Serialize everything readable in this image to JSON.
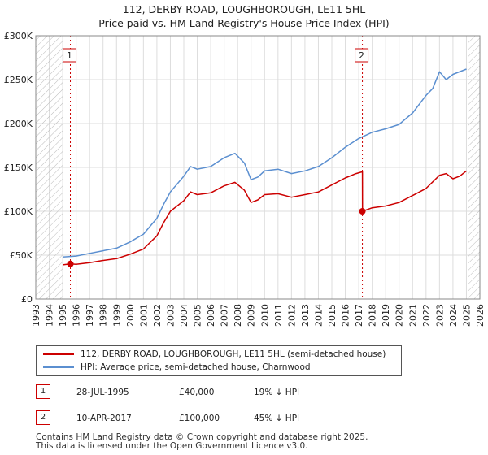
{
  "header": {
    "title": "112, DERBY ROAD, LOUGHBOROUGH, LE11 5HL",
    "subtitle": "Price paid vs. HM Land Registry's House Price Index (HPI)"
  },
  "chart_data": {
    "type": "line",
    "title": "112, DERBY ROAD, LOUGHBOROUGH, LE11 5HL",
    "subtitle": "Price paid vs. HM Land Registry's House Price Index (HPI)",
    "xlabel": "",
    "ylabel": "",
    "xlim": [
      1993,
      2026
    ],
    "ylim": [
      0,
      300000
    ],
    "x_ticks": [
      "1993",
      "1994",
      "1995",
      "1996",
      "1997",
      "1998",
      "1999",
      "2000",
      "2001",
      "2002",
      "2003",
      "2004",
      "2005",
      "2006",
      "2007",
      "2008",
      "2009",
      "2010",
      "2011",
      "2012",
      "2013",
      "2014",
      "2015",
      "2016",
      "2017",
      "2018",
      "2019",
      "2020",
      "2021",
      "2022",
      "2023",
      "2024",
      "2025",
      "2026"
    ],
    "y_ticks": [
      {
        "value": 0,
        "label": "£0"
      },
      {
        "value": 50000,
        "label": "£50K"
      },
      {
        "value": 100000,
        "label": "£100K"
      },
      {
        "value": 150000,
        "label": "£150K"
      },
      {
        "value": 200000,
        "label": "£200K"
      },
      {
        "value": 250000,
        "label": "£250K"
      },
      {
        "value": 300000,
        "label": "£300K"
      }
    ],
    "grid": true,
    "hatched_ranges": [
      [
        1993,
        1995.0
      ],
      [
        2025.1,
        2026
      ]
    ],
    "series": [
      {
        "name": "112, DERBY ROAD, LOUGHBOROUGH, LE11 5HL (semi-detached house)",
        "color": "#cc0000",
        "x": [
          1995.0,
          1995.57,
          1996,
          1997,
          1998,
          1999,
          2000,
          2001,
          2002,
          2002.5,
          2003,
          2004,
          2004.5,
          2005,
          2006,
          2007,
          2007.8,
          2008.5,
          2009,
          2009.5,
          2010,
          2011,
          2012,
          2013,
          2014,
          2015,
          2016,
          2016.8,
          2017.27,
          2017.28,
          2018,
          2019,
          2020,
          2021,
          2022,
          2023,
          2023.5,
          2024,
          2024.5,
          2025.0
        ],
        "y": [
          39000,
          40000,
          39500,
          41500,
          44000,
          46000,
          51000,
          57000,
          72000,
          87000,
          100000,
          112000,
          122000,
          119000,
          121000,
          129000,
          133000,
          124000,
          110000,
          113000,
          119000,
          120000,
          116000,
          119000,
          122000,
          130000,
          138000,
          143000,
          145000,
          100000,
          104000,
          106000,
          110000,
          118000,
          126000,
          141000,
          143000,
          137000,
          140000,
          146000
        ]
      },
      {
        "name": "HPI: Average price, semi-detached house, Charnwood",
        "color": "#5b8fd0",
        "x": [
          1995.0,
          1996,
          1997,
          1998,
          1999,
          2000,
          2001,
          2002,
          2002.5,
          2003,
          2004,
          2004.5,
          2005,
          2006,
          2007,
          2007.8,
          2008.5,
          2009,
          2009.5,
          2010,
          2011,
          2012,
          2013,
          2014,
          2015,
          2016,
          2017,
          2018,
          2019,
          2020,
          2021,
          2022,
          2022.5,
          2023,
          2023.5,
          2024,
          2025.0
        ],
        "y": [
          48000,
          49000,
          52000,
          55000,
          58000,
          65000,
          74000,
          92000,
          108000,
          122000,
          140000,
          151000,
          148000,
          151000,
          161000,
          166000,
          155000,
          136000,
          139000,
          146000,
          148000,
          143000,
          146000,
          151000,
          161000,
          173000,
          183000,
          190000,
          194000,
          199000,
          212000,
          232000,
          240000,
          259000,
          250000,
          256000,
          262000
        ]
      }
    ],
    "sale_markers": [
      {
        "label": "1",
        "x": 1995.57,
        "y": 40000
      },
      {
        "label": "2",
        "x": 2017.27,
        "y": 100000
      }
    ]
  },
  "legend": {
    "red_label": "112, DERBY ROAD, LOUGHBOROUGH, LE11 5HL (semi-detached house)",
    "blue_label": "HPI: Average price, semi-detached house, Charnwood"
  },
  "sales": [
    {
      "num": "1",
      "date": "28-JUL-1995",
      "price": "£40,000",
      "hpi": "19% ↓ HPI"
    },
    {
      "num": "2",
      "date": "10-APR-2017",
      "price": "£100,000",
      "hpi": "45% ↓ HPI"
    }
  ],
  "footer": {
    "line1": "Contains HM Land Registry data © Crown copyright and database right 2025.",
    "line2": "This data is licensed under the Open Government Licence v3.0."
  }
}
